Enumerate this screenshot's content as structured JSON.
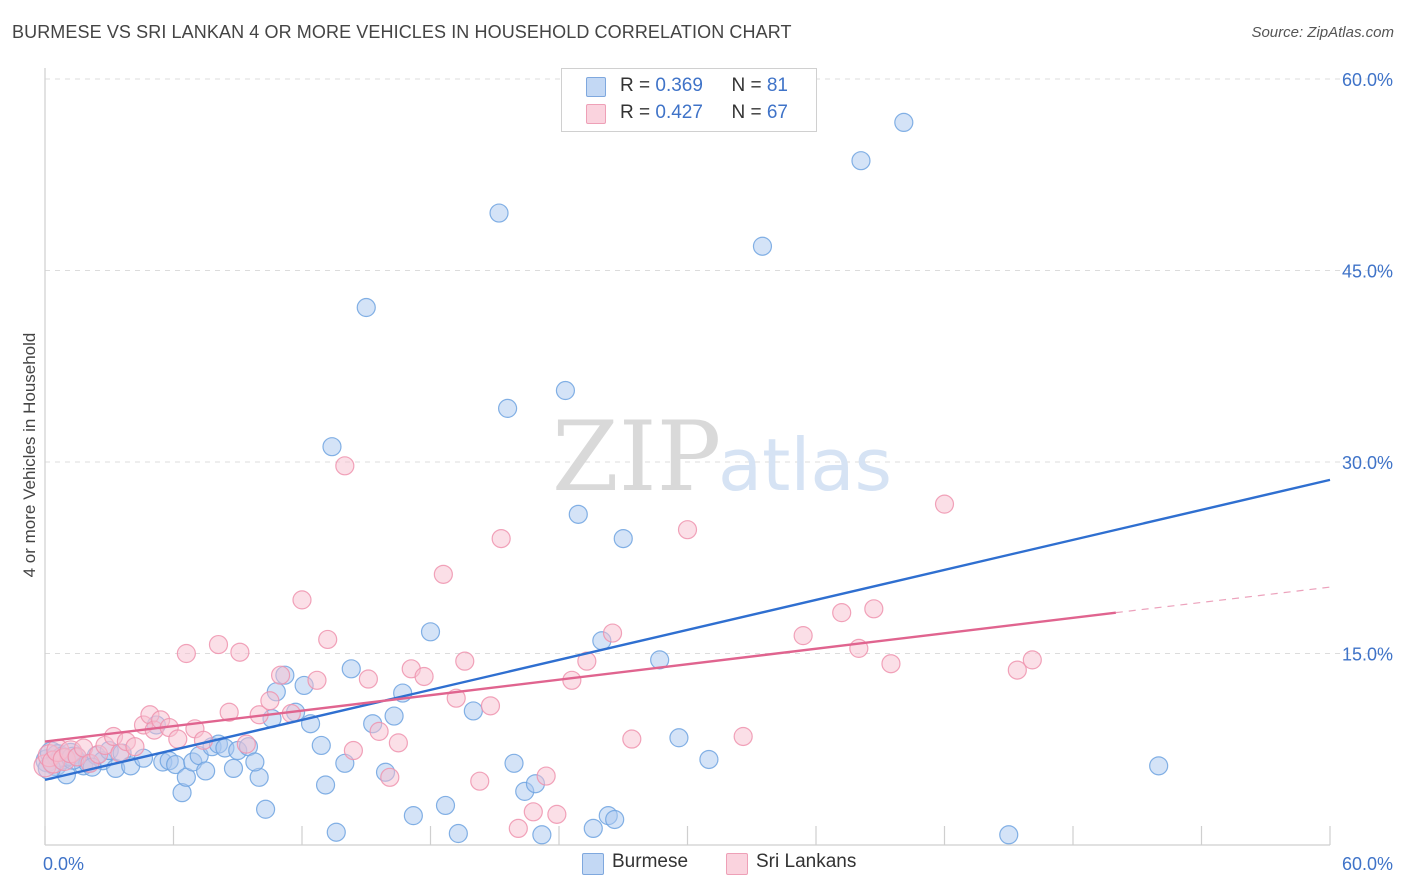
{
  "header": {
    "title": "BURMESE VS SRI LANKAN 4 OR MORE VEHICLES IN HOUSEHOLD CORRELATION CHART",
    "source": "Source: ZipAtlas.com"
  },
  "watermark": {
    "zip": "ZIP",
    "atlas": "atlas"
  },
  "legend": {
    "rows": [
      {
        "r_label": "R = ",
        "r_value": "0.369",
        "n_label": "N = ",
        "n_value": "81",
        "color": "#a9c8f0"
      },
      {
        "r_label": "R = ",
        "r_value": "0.427",
        "n_label": "N = ",
        "n_value": "67",
        "color": "#f7bfd0"
      }
    ]
  },
  "bottom_legend": {
    "items": [
      {
        "label": "Burmese",
        "color": "#a9c8f0"
      },
      {
        "label": "Sri Lankans",
        "color": "#f7bfd0"
      }
    ]
  },
  "chart_data": {
    "type": "scatter",
    "title": "BURMESE VS SRI LANKAN 4 OR MORE VEHICLES IN HOUSEHOLD CORRELATION CHART",
    "xlabel": "",
    "ylabel": "4 or more Vehicles in Household",
    "xlim": [
      0,
      60
    ],
    "ylim": [
      0,
      60
    ],
    "x_tick_labels": [
      "0.0%",
      "60.0%"
    ],
    "y_ticks": [
      15,
      30,
      45,
      60
    ],
    "y_tick_labels": [
      "15.0%",
      "30.0%",
      "45.0%",
      "60.0%"
    ],
    "grid": true,
    "legend_position": "top-center",
    "series": [
      {
        "name": "Burmese",
        "color": "#6fa3e0",
        "fill": "#a9c8f0",
        "r": 0.369,
        "n": 81,
        "trend": {
          "x": [
            0,
            60
          ],
          "y": [
            5.1,
            28.6
          ],
          "color": "#2f6fd0"
        },
        "points": [
          [
            0.1,
            6.6
          ],
          [
            0.3,
            7.2
          ],
          [
            0.5,
            6.3
          ],
          [
            0.6,
            7.0
          ],
          [
            0.8,
            6.8
          ],
          [
            1.0,
            5.5
          ],
          [
            1.2,
            7.1
          ],
          [
            1.5,
            6.9
          ],
          [
            1.8,
            6.2
          ],
          [
            2.0,
            6.4
          ],
          [
            2.4,
            7.0
          ],
          [
            2.7,
            6.6
          ],
          [
            3.0,
            7.4
          ],
          [
            3.3,
            6.0
          ],
          [
            3.6,
            7.2
          ],
          [
            4.0,
            6.2
          ],
          [
            5.2,
            9.4
          ],
          [
            5.5,
            6.5
          ],
          [
            5.8,
            6.6
          ],
          [
            6.1,
            6.3
          ],
          [
            6.4,
            4.1
          ],
          [
            6.6,
            5.3
          ],
          [
            6.9,
            6.5
          ],
          [
            7.2,
            7.0
          ],
          [
            7.5,
            5.8
          ],
          [
            7.8,
            7.7
          ],
          [
            8.1,
            7.9
          ],
          [
            8.4,
            7.6
          ],
          [
            8.8,
            6.0
          ],
          [
            9.0,
            7.4
          ],
          [
            9.5,
            7.7
          ],
          [
            10.0,
            5.3
          ],
          [
            10.3,
            2.8
          ],
          [
            10.6,
            9.9
          ],
          [
            10.8,
            12.0
          ],
          [
            11.2,
            13.3
          ],
          [
            11.7,
            10.4
          ],
          [
            12.1,
            12.5
          ],
          [
            12.4,
            9.5
          ],
          [
            12.9,
            7.8
          ],
          [
            13.1,
            4.7
          ],
          [
            13.4,
            31.2
          ],
          [
            13.6,
            1.0
          ],
          [
            14.0,
            6.4
          ],
          [
            14.3,
            13.8
          ],
          [
            15.0,
            42.1
          ],
          [
            15.3,
            9.5
          ],
          [
            15.9,
            5.7
          ],
          [
            16.3,
            10.1
          ],
          [
            16.7,
            11.9
          ],
          [
            17.2,
            2.3
          ],
          [
            18.0,
            16.7
          ],
          [
            18.7,
            3.1
          ],
          [
            19.3,
            0.9
          ],
          [
            20.0,
            10.5
          ],
          [
            21.2,
            49.5
          ],
          [
            21.6,
            34.2
          ],
          [
            21.9,
            6.4
          ],
          [
            22.4,
            4.2
          ],
          [
            22.9,
            4.8
          ],
          [
            23.2,
            0.8
          ],
          [
            24.3,
            35.6
          ],
          [
            24.9,
            25.9
          ],
          [
            25.6,
            1.3
          ],
          [
            26.0,
            16.0
          ],
          [
            26.3,
            2.3
          ],
          [
            27.0,
            24.0
          ],
          [
            28.7,
            14.5
          ],
          [
            29.6,
            8.4
          ],
          [
            31.0,
            6.7
          ],
          [
            33.5,
            46.9
          ],
          [
            38.1,
            53.6
          ],
          [
            40.1,
            56.6
          ],
          [
            45.0,
            0.8
          ],
          [
            52.0,
            6.2
          ],
          [
            0.2,
            6.0
          ],
          [
            1.3,
            6.8
          ],
          [
            2.2,
            6.1
          ],
          [
            4.6,
            6.8
          ],
          [
            9.8,
            6.5
          ],
          [
            26.6,
            2.0
          ]
        ]
      },
      {
        "name": "Sri Lankans",
        "color": "#ee93ae",
        "fill": "#f7bfd0",
        "r": 0.427,
        "n": 67,
        "trend": {
          "x": [
            0,
            50
          ],
          "y": [
            8.1,
            18.2
          ],
          "color": "#e0648f"
        },
        "trend_dashed": {
          "x": [
            50,
            60
          ],
          "y": [
            18.2,
            20.2
          ]
        },
        "points": [
          [
            0.0,
            6.2
          ],
          [
            0.2,
            7.0
          ],
          [
            0.4,
            6.5
          ],
          [
            0.6,
            7.4
          ],
          [
            0.9,
            6.7
          ],
          [
            1.2,
            7.3
          ],
          [
            1.5,
            6.9
          ],
          [
            1.8,
            7.6
          ],
          [
            2.1,
            6.4
          ],
          [
            2.5,
            7.1
          ],
          [
            2.8,
            7.8
          ],
          [
            3.2,
            8.5
          ],
          [
            3.5,
            7.2
          ],
          [
            3.8,
            8.1
          ],
          [
            4.2,
            7.7
          ],
          [
            4.6,
            9.4
          ],
          [
            4.9,
            10.2
          ],
          [
            5.1,
            9.0
          ],
          [
            5.4,
            9.8
          ],
          [
            5.8,
            9.2
          ],
          [
            6.2,
            8.3
          ],
          [
            6.6,
            15.0
          ],
          [
            7.0,
            9.1
          ],
          [
            7.4,
            8.2
          ],
          [
            8.1,
            15.7
          ],
          [
            8.6,
            10.4
          ],
          [
            9.1,
            15.1
          ],
          [
            9.4,
            7.9
          ],
          [
            10.0,
            10.2
          ],
          [
            10.5,
            11.3
          ],
          [
            11.0,
            13.3
          ],
          [
            11.5,
            10.3
          ],
          [
            12.0,
            19.2
          ],
          [
            12.7,
            12.9
          ],
          [
            13.2,
            16.1
          ],
          [
            14.0,
            29.7
          ],
          [
            14.4,
            7.4
          ],
          [
            15.1,
            13.0
          ],
          [
            15.6,
            8.9
          ],
          [
            16.1,
            5.3
          ],
          [
            16.5,
            8.0
          ],
          [
            17.1,
            13.8
          ],
          [
            17.7,
            13.2
          ],
          [
            18.6,
            21.2
          ],
          [
            19.2,
            11.5
          ],
          [
            19.6,
            14.4
          ],
          [
            20.3,
            5.0
          ],
          [
            20.8,
            10.9
          ],
          [
            21.3,
            24.0
          ],
          [
            22.1,
            1.3
          ],
          [
            22.8,
            2.6
          ],
          [
            23.4,
            5.4
          ],
          [
            23.9,
            2.4
          ],
          [
            24.6,
            12.9
          ],
          [
            25.3,
            14.4
          ],
          [
            26.5,
            16.6
          ],
          [
            27.4,
            8.3
          ],
          [
            30.0,
            24.7
          ],
          [
            32.6,
            8.5
          ],
          [
            35.4,
            16.4
          ],
          [
            37.2,
            18.2
          ],
          [
            38.0,
            15.4
          ],
          [
            38.7,
            18.5
          ],
          [
            39.5,
            14.2
          ],
          [
            42.0,
            26.7
          ],
          [
            45.4,
            13.7
          ],
          [
            46.1,
            14.5
          ]
        ]
      }
    ]
  }
}
